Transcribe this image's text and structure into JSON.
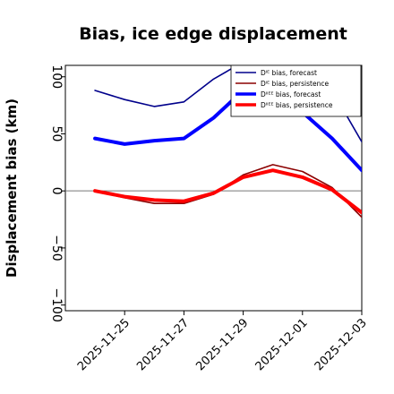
{
  "chart_data": {
    "type": "line",
    "title": "Bias, ice edge displacement",
    "ylabel": "Displacement bias (km)",
    "xlabel": "",
    "ylim": [
      -105,
      110
    ],
    "xlim": [
      "2025-11-23",
      "2025-12-03"
    ],
    "y_ticks": [
      100,
      50,
      0,
      -50,
      -100
    ],
    "y_tick_labels": [
      "100",
      "50",
      "0",
      "−50",
      "−100"
    ],
    "x_ticks": [
      "2025-11-25",
      "2025-11-27",
      "2025-11-29",
      "2025-12-01",
      "2025-12-03"
    ],
    "x_tick_labels": [
      "2025-11-25",
      "2025-11-27",
      "2025-11-29",
      "2025-12-01",
      "2025-12-03"
    ],
    "x_tick_colors": [
      "#228b22",
      "#000000",
      "#000000",
      "#000000",
      "#000000"
    ],
    "zero_line": true,
    "grid": false,
    "legend_position": "top-right",
    "series": [
      {
        "name": "Dᴵᴱ bias, forecast",
        "color": "#00008b",
        "width": "thin",
        "x": [
          "2025-11-24",
          "2025-11-25",
          "2025-11-26",
          "2025-11-27",
          "2025-11-28",
          "2025-11-29",
          "2025-11-30",
          "2025-12-01",
          "2025-12-02",
          "2025-12-03"
        ],
        "y": [
          88,
          80,
          74,
          78,
          98,
          113,
          118,
          108,
          88,
          43
        ]
      },
      {
        "name": "Dᴵᴱ bias, persistence",
        "color": "#8b0000",
        "width": "thin",
        "x": [
          "2025-11-24",
          "2025-11-25",
          "2025-11-26",
          "2025-11-27",
          "2025-11-28",
          "2025-11-29",
          "2025-11-30",
          "2025-12-01",
          "2025-12-02",
          "2025-12-03"
        ],
        "y": [
          0,
          -6,
          -11,
          -11,
          -3,
          14,
          23,
          17,
          3,
          -23
        ]
      },
      {
        "name": "Dᴵᴵᴱᴱ bias, forecast",
        "color": "#0000ff",
        "width": "thick",
        "x": [
          "2025-11-24",
          "2025-11-25",
          "2025-11-26",
          "2025-11-27",
          "2025-11-28",
          "2025-11-29",
          "2025-11-30",
          "2025-12-01",
          "2025-12-02",
          "2025-12-03"
        ],
        "y": [
          46,
          41,
          44,
          46,
          64,
          88,
          86,
          69,
          46,
          18
        ]
      },
      {
        "name": "Dᴵᴵᴱᴱ bias, persistence",
        "color": "#ff0000",
        "width": "thick",
        "x": [
          "2025-11-24",
          "2025-11-25",
          "2025-11-26",
          "2025-11-27",
          "2025-11-28",
          "2025-11-29",
          "2025-11-30",
          "2025-12-01",
          "2025-12-02",
          "2025-12-03"
        ],
        "y": [
          0,
          -5,
          -8,
          -9,
          -2,
          12,
          18,
          12,
          1,
          -19
        ]
      }
    ],
    "colors": {
      "axis": "#000000",
      "zero_line": "#777777",
      "background": "#ffffff"
    }
  }
}
